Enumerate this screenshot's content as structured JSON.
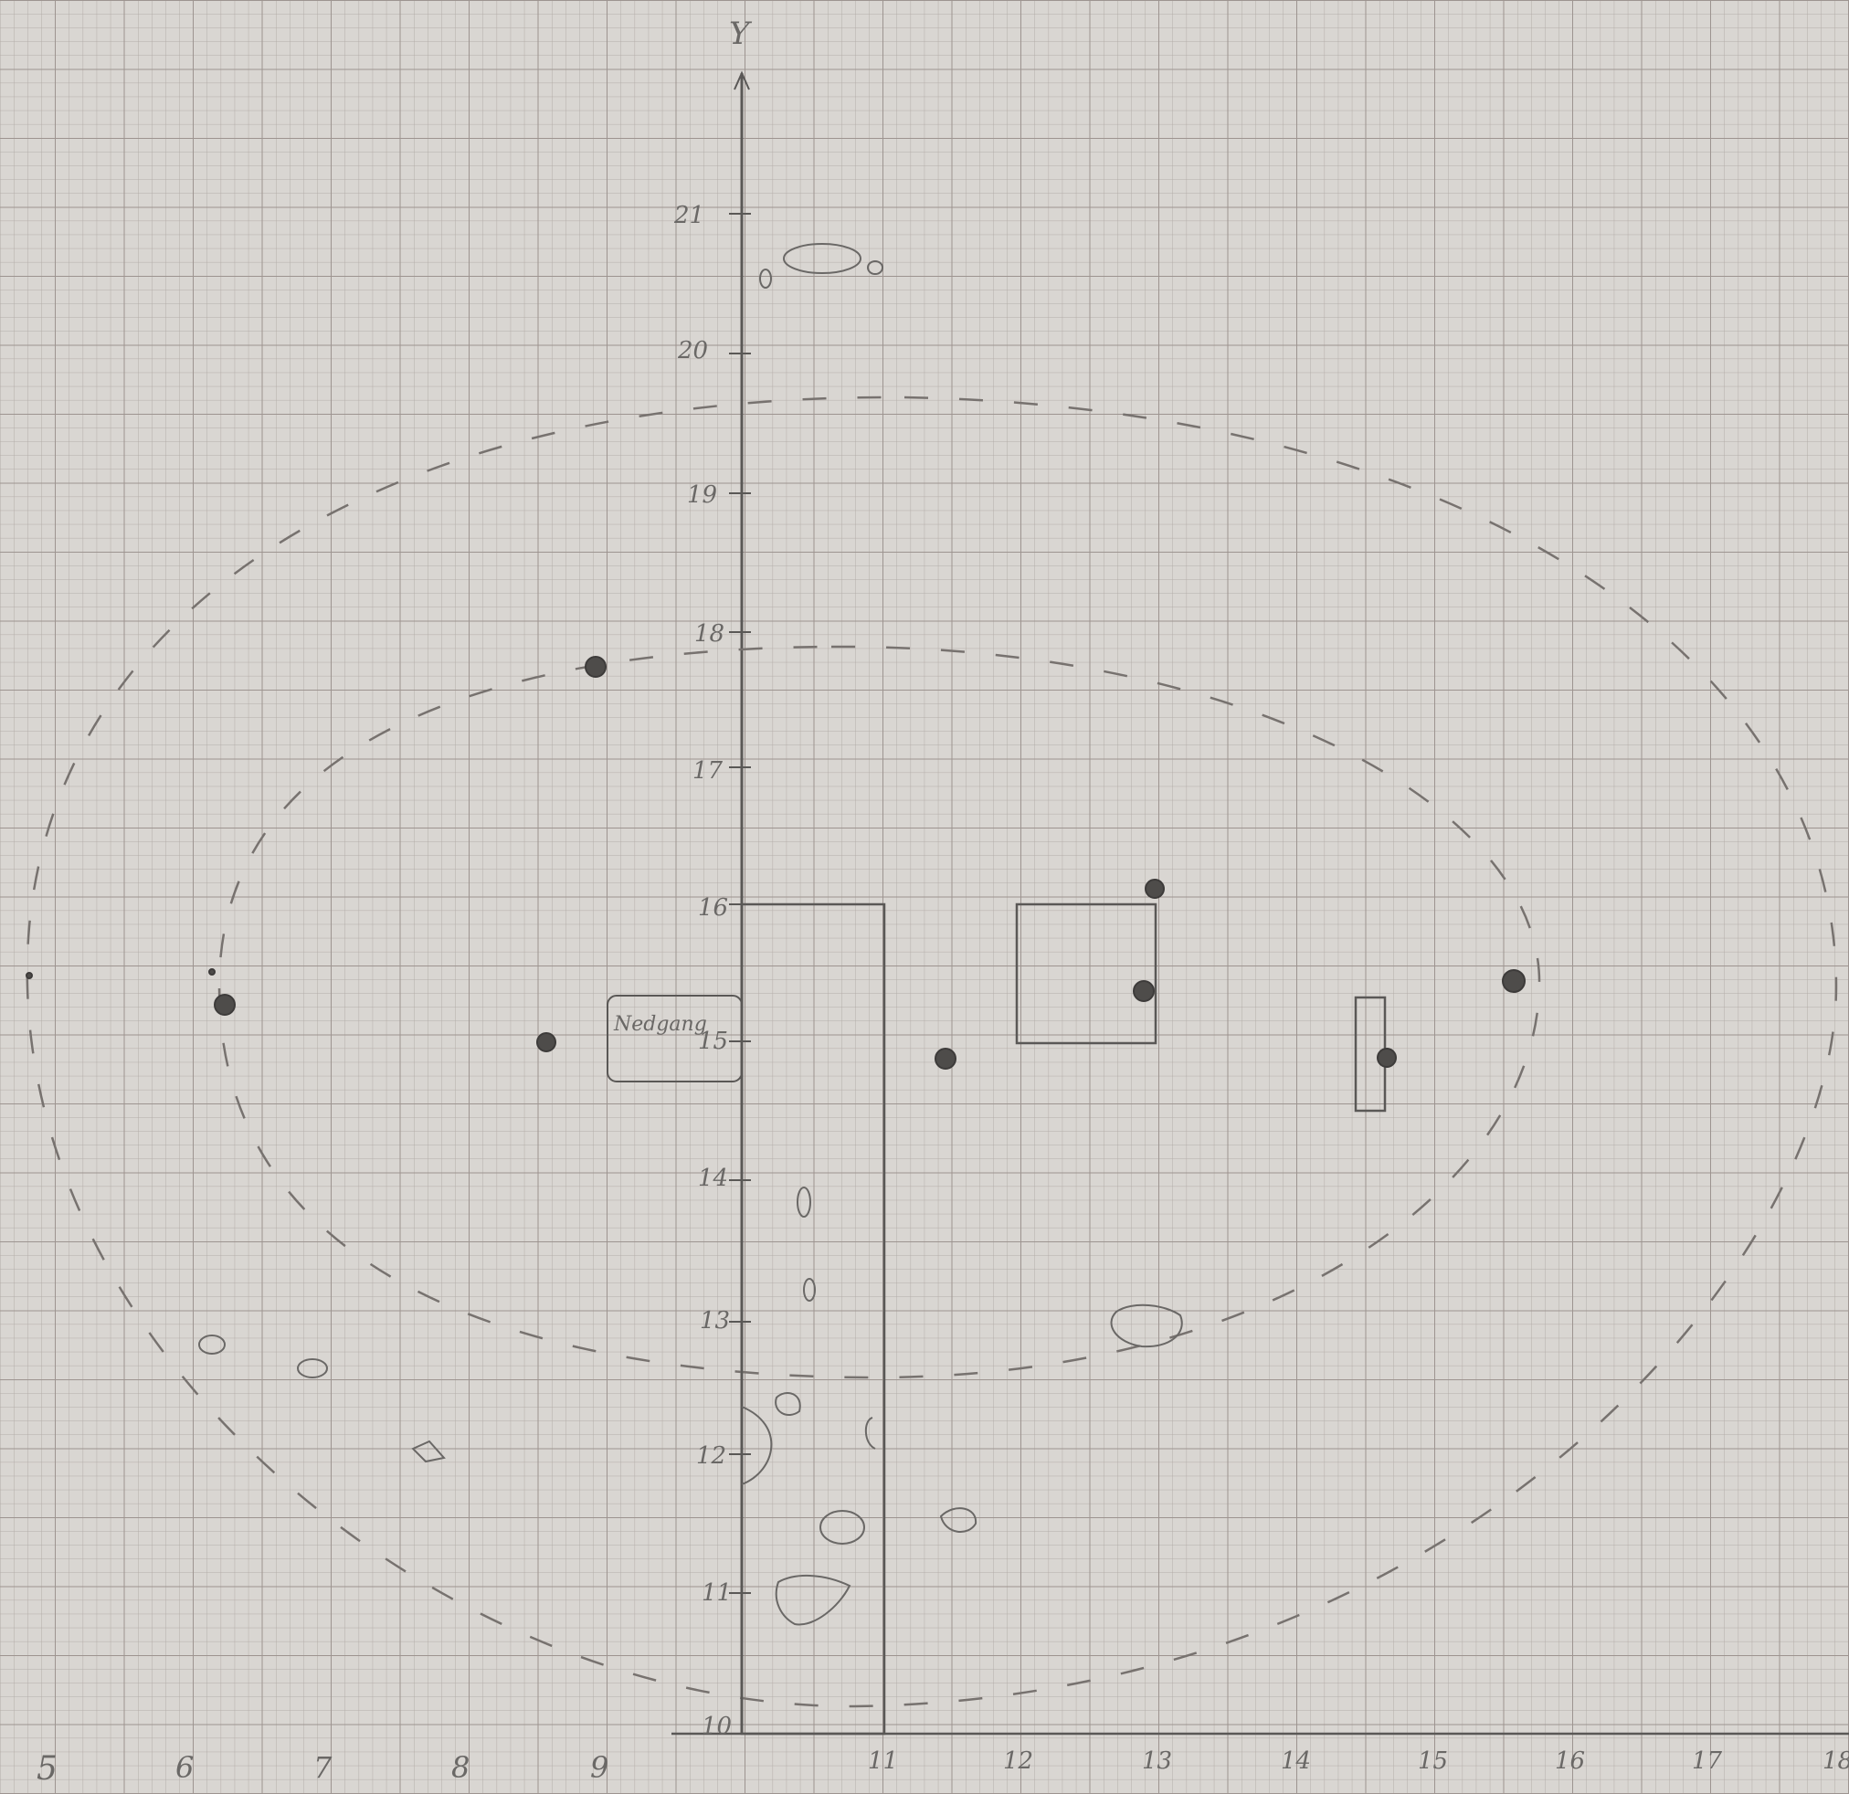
{
  "sheet": {
    "paper_color": "#d9d6d2",
    "grid_color": "#a9a29e",
    "pencil_color": "#5a5856"
  },
  "axes": {
    "y_axis_label": "Y",
    "x_ticks": [
      "5",
      "6",
      "7",
      "8",
      "9",
      "11",
      "12",
      "13",
      "14",
      "15",
      "16",
      "17",
      "18"
    ],
    "y_ticks": [
      "10",
      "11",
      "12",
      "13",
      "14",
      "15",
      "16",
      "17",
      "18",
      "19",
      "20",
      "21"
    ]
  },
  "annotations": {
    "rectangle_note": "Nedgang"
  },
  "features": {
    "large_rect": "rectangle",
    "square": "rectangle",
    "narrow_rect": "rectangle",
    "label_box": "rectangle",
    "outer_ellipse": "dashed ellipse",
    "inner_ellipse": "dashed ellipse",
    "post_holes": 10,
    "stones": 9
  }
}
